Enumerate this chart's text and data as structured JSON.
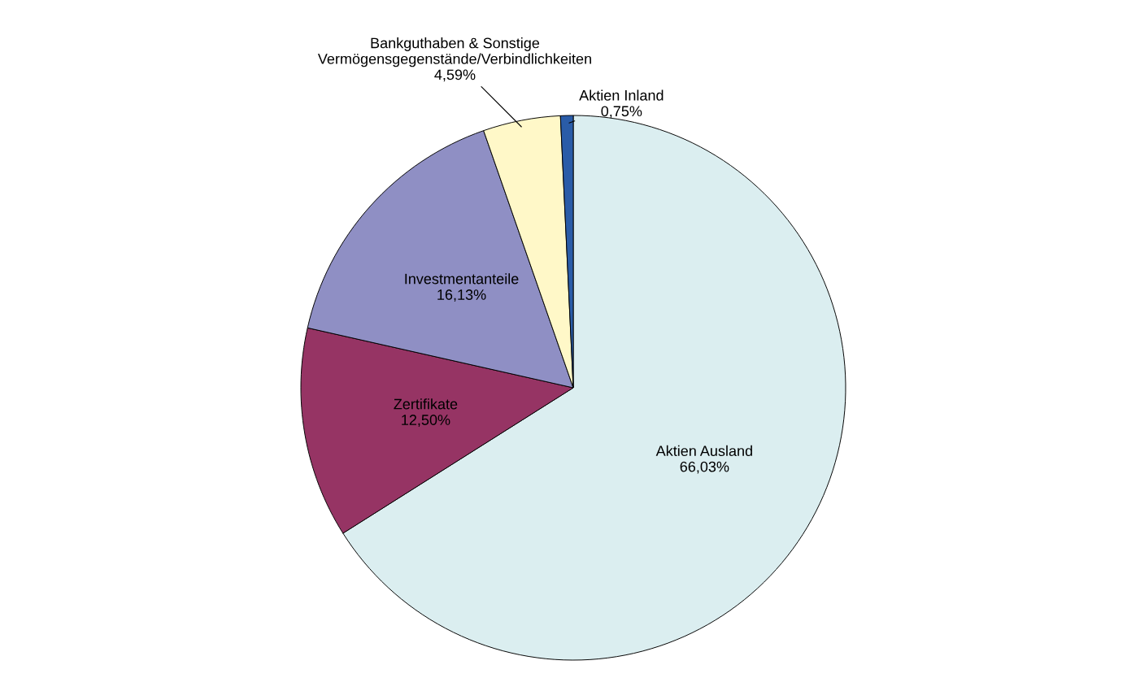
{
  "chart_data": {
    "type": "pie",
    "categories": [
      "Aktien Ausland",
      "Zertifikate",
      "Investmentanteile",
      "Bankguthaben & Sonstige\nVermögensgegenstände/Verbindlichkeiten",
      "Aktien Inland"
    ],
    "values": [
      66.03,
      12.5,
      16.13,
      4.59,
      0.75
    ],
    "value_labels": [
      "66,03%",
      "12,50%",
      "16,13%",
      "4,59%",
      "0,75%"
    ],
    "colors": [
      "#dbeef0",
      "#963464",
      "#8f8fc4",
      "#fff8c8",
      "#2a5ca8"
    ]
  }
}
